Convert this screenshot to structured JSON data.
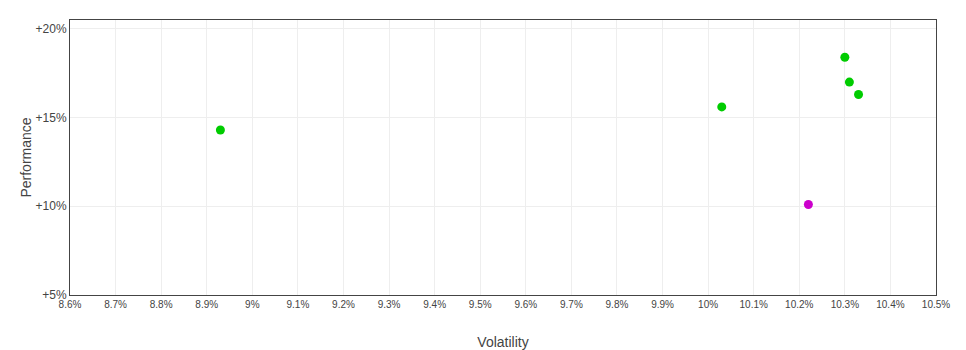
{
  "chart_data": {
    "type": "scatter",
    "xlabel": "Volatility",
    "ylabel": "Performance",
    "x": [
      0.0893,
      0.1003,
      0.1022,
      0.103,
      0.1031,
      0.1033
    ],
    "values": [
      0.143,
      0.156,
      0.101,
      0.184,
      0.17,
      0.163
    ],
    "colors": [
      "#00cc00",
      "#00cc00",
      "#cc00cc",
      "#00cc00",
      "#00cc00",
      "#00cc00"
    ],
    "xlim": [
      0.086,
      0.105
    ],
    "ylim": [
      0.05,
      0.205
    ],
    "xticks": [
      {
        "value": 0.086,
        "label": "8.6%"
      },
      {
        "value": 0.087,
        "label": "8.7%"
      },
      {
        "value": 0.088,
        "label": "8.8%"
      },
      {
        "value": 0.089,
        "label": "8.9%"
      },
      {
        "value": 0.09,
        "label": "9%"
      },
      {
        "value": 0.091,
        "label": "9.1%"
      },
      {
        "value": 0.092,
        "label": "9.2%"
      },
      {
        "value": 0.093,
        "label": "9.3%"
      },
      {
        "value": 0.094,
        "label": "9.4%"
      },
      {
        "value": 0.095,
        "label": "9.5%"
      },
      {
        "value": 0.096,
        "label": "9.6%"
      },
      {
        "value": 0.097,
        "label": "9.7%"
      },
      {
        "value": 0.098,
        "label": "9.8%"
      },
      {
        "value": 0.099,
        "label": "9.9%"
      },
      {
        "value": 0.1,
        "label": "10%"
      },
      {
        "value": 0.101,
        "label": "10.1%"
      },
      {
        "value": 0.102,
        "label": "10.2%"
      },
      {
        "value": 0.103,
        "label": "10.3%"
      },
      {
        "value": 0.104,
        "label": "10.4%"
      },
      {
        "value": 0.105,
        "label": "10.5%"
      }
    ],
    "yticks": [
      {
        "value": 0.05,
        "label": "+5%"
      },
      {
        "value": 0.1,
        "label": "+10%"
      },
      {
        "value": 0.15,
        "label": "+15%"
      },
      {
        "value": 0.2,
        "label": "+20%"
      }
    ],
    "grid": true
  }
}
